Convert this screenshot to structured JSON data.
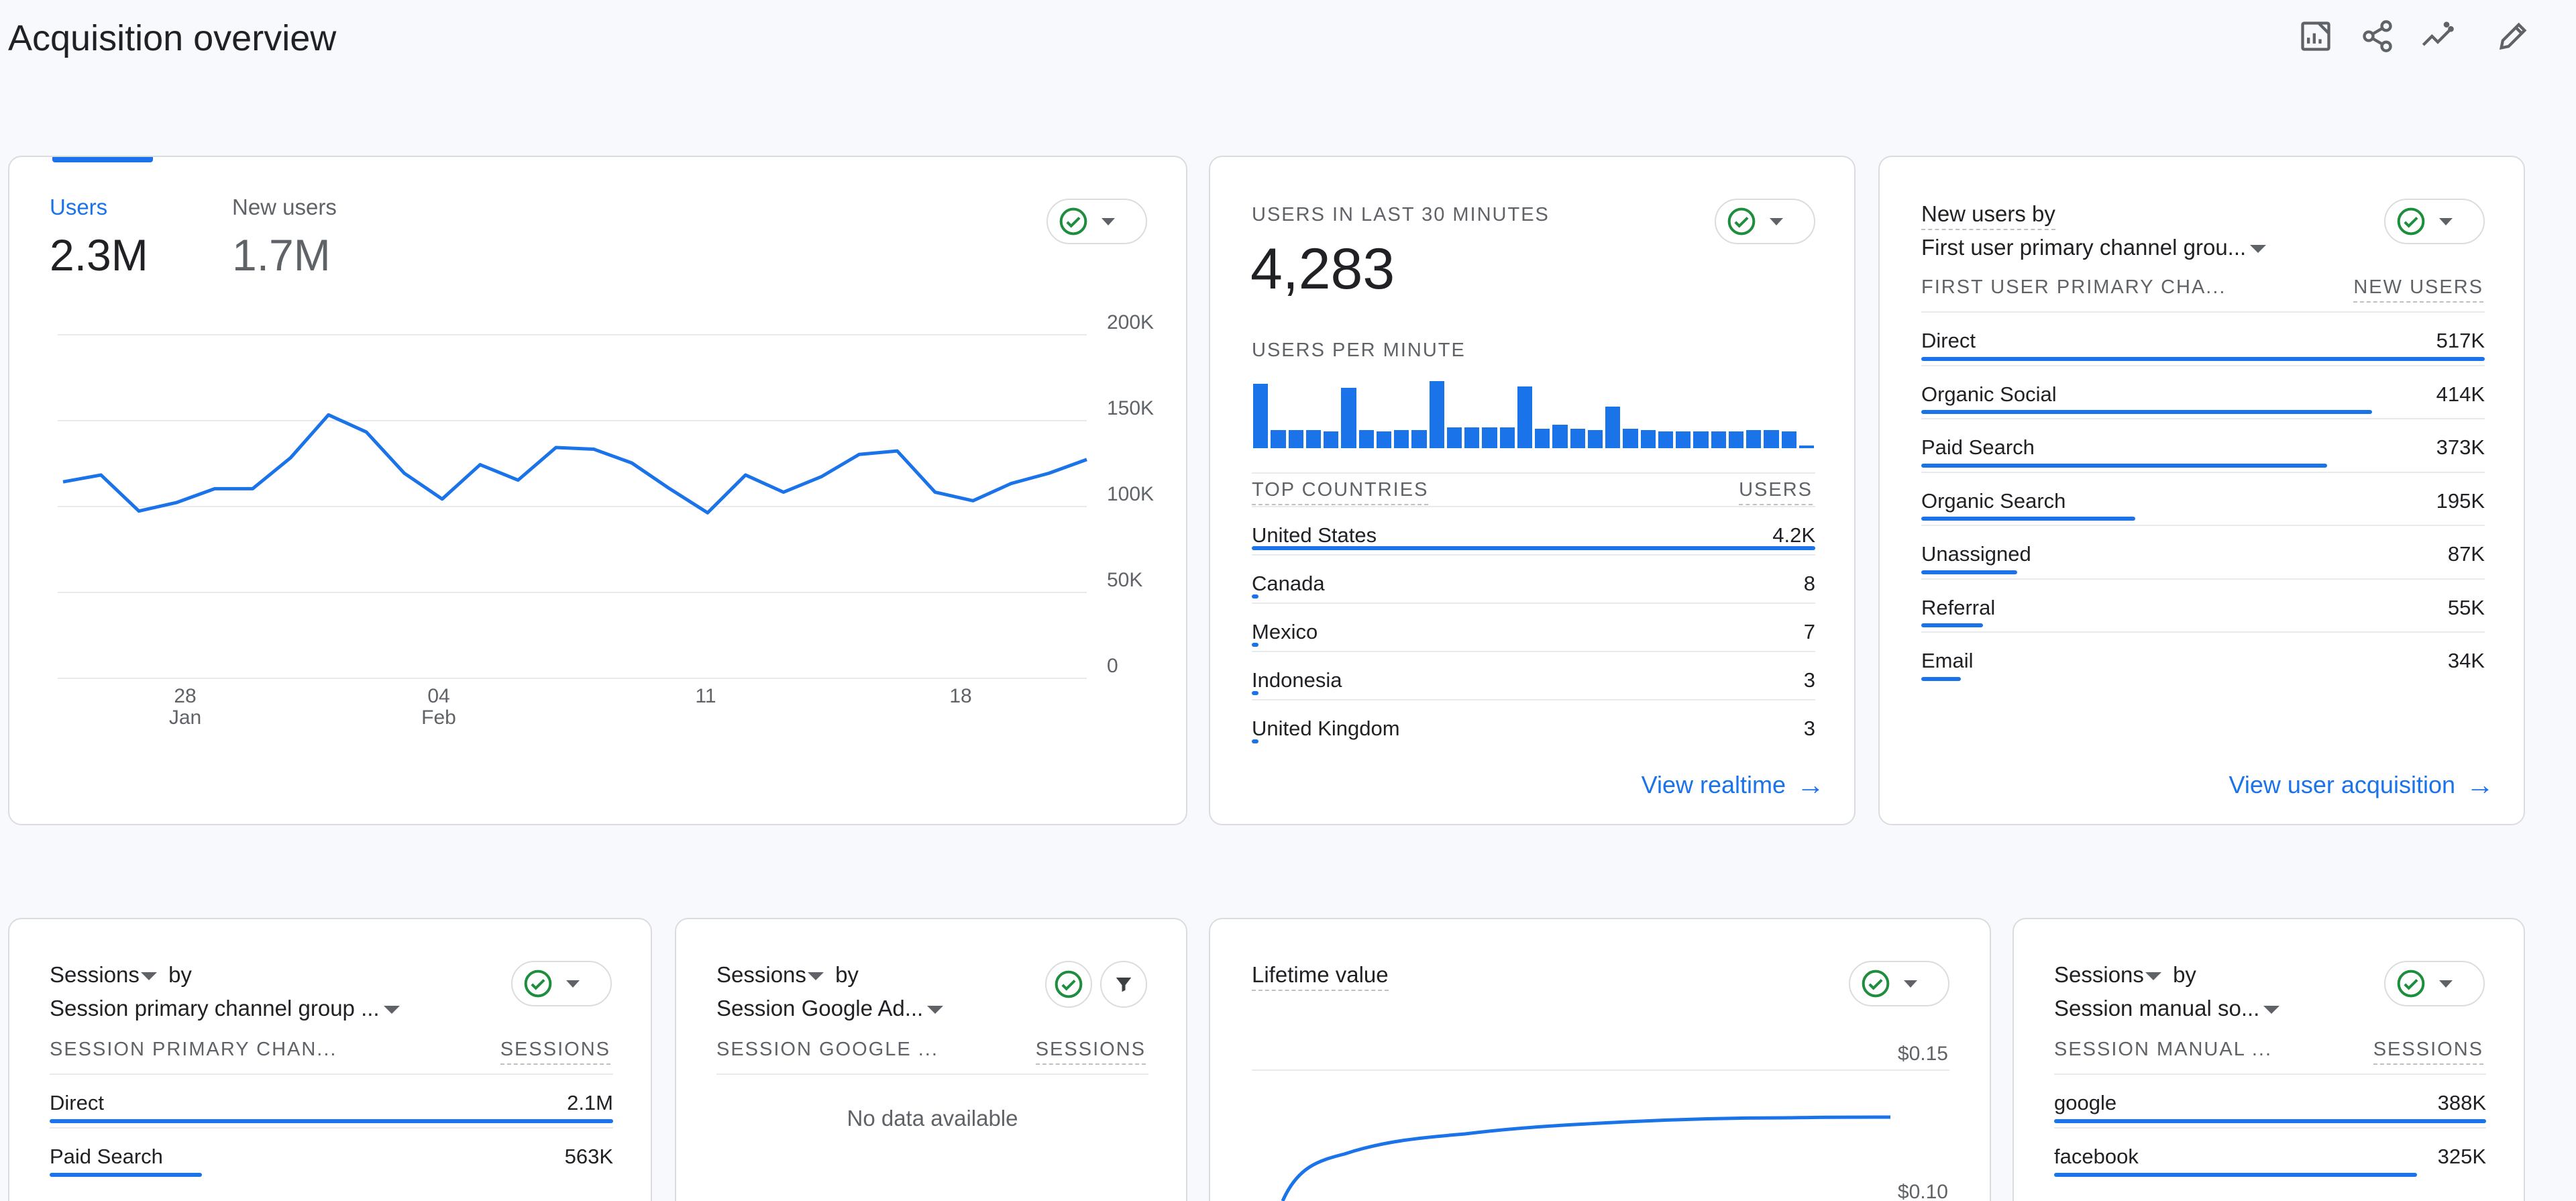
{
  "page": {
    "title": "Acquisition overview",
    "toolbar_icons": [
      "customize-report-icon",
      "share-icon",
      "insights-icon",
      "edit-icon"
    ]
  },
  "colors": {
    "accent": "#1a73e8",
    "check": "#1e8e3e",
    "border": "#dadce0"
  },
  "users_card": {
    "metric1_label": "Users",
    "metric1_value": "2.3M",
    "metric2_label": "New users",
    "metric2_value": "1.7M",
    "y_ticks": [
      "200K",
      "150K",
      "100K",
      "50K",
      "0"
    ],
    "x_ticks": [
      {
        "day": "28",
        "month": "Jan"
      },
      {
        "day": "04",
        "month": "Feb"
      },
      {
        "day": "11",
        "month": ""
      },
      {
        "day": "18",
        "month": ""
      }
    ]
  },
  "chart_data": {
    "type": "line",
    "series": [
      {
        "values": [
          114000,
          118000,
          97000,
          102000,
          110000,
          110000,
          128000,
          153000,
          143000,
          119000,
          104000,
          124000,
          115000,
          134000,
          133000,
          125000,
          110000,
          96000,
          118000,
          108000,
          117000,
          130000,
          132000,
          108000,
          103000,
          113000,
          119000,
          127000
        ]
      }
    ],
    "ylim": [
      0,
      200000
    ],
    "grid": true
  },
  "realtime_card": {
    "heading": "USERS IN LAST 30 MINUTES",
    "value": "4,283",
    "per_minute_label": "USERS PER MINUTE",
    "per_minute_bars": [
      100,
      28,
      28,
      28,
      26,
      94,
      28,
      26,
      28,
      28,
      104,
      32,
      32,
      32,
      32,
      96,
      30,
      36,
      30,
      28,
      64,
      30,
      28,
      26,
      26,
      26,
      26,
      26,
      28,
      28,
      26,
      4
    ],
    "countries_header": "TOP COUNTRIES",
    "users_header": "USERS",
    "rows": [
      {
        "label": "United States",
        "value": "4.2K",
        "share": 1.0
      },
      {
        "label": "Canada",
        "value": "8",
        "share": 0.004
      },
      {
        "label": "Mexico",
        "value": "7",
        "share": 0.004
      },
      {
        "label": "Indonesia",
        "value": "3",
        "share": 0.003
      },
      {
        "label": "United Kingdom",
        "value": "3",
        "share": 0.003
      }
    ],
    "link": "View realtime"
  },
  "new_users_card": {
    "title": "New users by",
    "dimension": "First user primary channel grou...",
    "col_header": "FIRST USER PRIMARY CHA...",
    "val_header": "NEW USERS",
    "rows": [
      {
        "label": "Direct",
        "value": "517K",
        "share": 1.0
      },
      {
        "label": "Organic Social",
        "value": "414K",
        "share": 0.8
      },
      {
        "label": "Paid Search",
        "value": "373K",
        "share": 0.72
      },
      {
        "label": "Organic Search",
        "value": "195K",
        "share": 0.38
      },
      {
        "label": "Unassigned",
        "value": "87K",
        "share": 0.17
      },
      {
        "label": "Referral",
        "value": "55K",
        "share": 0.11
      },
      {
        "label": "Email",
        "value": "34K",
        "share": 0.07
      }
    ],
    "link": "View user acquisition"
  },
  "sessions_channel_card": {
    "title": "Sessions",
    "by": "by",
    "dimension": "Session primary channel group ...",
    "col_header": "SESSION PRIMARY CHAN...",
    "val_header": "SESSIONS",
    "rows": [
      {
        "label": "Direct",
        "value": "2.1M",
        "share": 1.0
      },
      {
        "label": "Paid Search",
        "value": "563K",
        "share": 0.27
      }
    ]
  },
  "sessions_ads_card": {
    "title": "Sessions",
    "by": "by",
    "dimension": "Session Google Ad...",
    "col_header": "SESSION GOOGLE ...",
    "val_header": "SESSIONS",
    "empty": "No data available"
  },
  "ltv_card": {
    "title": "Lifetime value",
    "y_ticks": [
      "$0.15",
      "$0.10"
    ]
  },
  "sessions_manual_card": {
    "title": "Sessions",
    "by": "by",
    "dimension": "Session manual so...",
    "col_header": "SESSION MANUAL ...",
    "val_header": "SESSIONS",
    "rows": [
      {
        "label": "google",
        "value": "388K",
        "share": 1.0
      },
      {
        "label": "facebook",
        "value": "325K",
        "share": 0.84
      }
    ]
  }
}
